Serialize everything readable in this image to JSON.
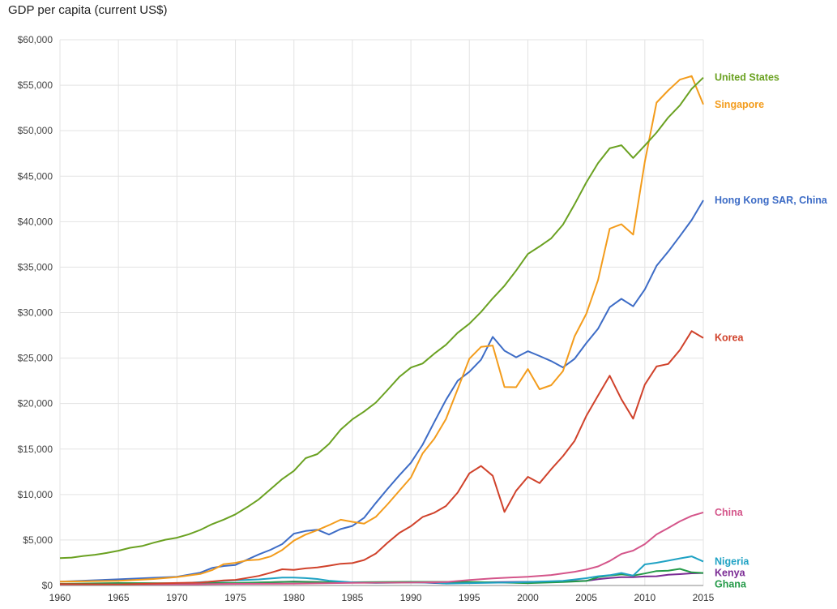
{
  "chart_data": {
    "type": "line",
    "title": "GDP per capita (current US$)",
    "xlabel": "",
    "ylabel": "",
    "xlim": [
      1960,
      2015
    ],
    "ylim": [
      0,
      60000
    ],
    "grid": true,
    "legend": "right (end-of-line labels)",
    "x_ticks": [
      "1960",
      "1965",
      "1970",
      "1975",
      "1980",
      "1985",
      "1990",
      "1995",
      "2000",
      "2005",
      "2010",
      "2015"
    ],
    "y_ticks": [
      "$0",
      "$5,000",
      "$10,000",
      "$15,000",
      "$20,000",
      "$25,000",
      "$30,000",
      "$35,000",
      "$40,000",
      "$45,000",
      "$50,000",
      "$55,000",
      "$60,000"
    ],
    "y_tick_values": [
      0,
      5000,
      10000,
      15000,
      20000,
      25000,
      30000,
      35000,
      40000,
      45000,
      50000,
      55000,
      60000
    ],
    "series": [
      {
        "name": "United States",
        "color": "#6aa121",
        "points": [
          [
            1960,
            3007
          ],
          [
            1961,
            3067
          ],
          [
            1962,
            3244
          ],
          [
            1963,
            3375
          ],
          [
            1964,
            3574
          ],
          [
            1965,
            3828
          ],
          [
            1966,
            4147
          ],
          [
            1967,
            4336
          ],
          [
            1968,
            4696
          ],
          [
            1969,
            5032
          ],
          [
            1970,
            5247
          ],
          [
            1971,
            5623
          ],
          [
            1972,
            6109
          ],
          [
            1973,
            6741
          ],
          [
            1974,
            7242
          ],
          [
            1975,
            7820
          ],
          [
            1976,
            8611
          ],
          [
            1977,
            9471
          ],
          [
            1978,
            10587
          ],
          [
            1979,
            11696
          ],
          [
            1980,
            12598
          ],
          [
            1981,
            13993
          ],
          [
            1982,
            14439
          ],
          [
            1983,
            15561
          ],
          [
            1984,
            17135
          ],
          [
            1985,
            18270
          ],
          [
            1986,
            19115
          ],
          [
            1987,
            20101
          ],
          [
            1988,
            21483
          ],
          [
            1989,
            22922
          ],
          [
            1990,
            23955
          ],
          [
            1991,
            24405
          ],
          [
            1992,
            25493
          ],
          [
            1993,
            26465
          ],
          [
            1994,
            27777
          ],
          [
            1995,
            28782
          ],
          [
            1996,
            30068
          ],
          [
            1997,
            31573
          ],
          [
            1998,
            32949
          ],
          [
            1999,
            34621
          ],
          [
            2000,
            36450
          ],
          [
            2001,
            37274
          ],
          [
            2002,
            38166
          ],
          [
            2003,
            39677
          ],
          [
            2004,
            41922
          ],
          [
            2005,
            44308
          ],
          [
            2006,
            46437
          ],
          [
            2007,
            48062
          ],
          [
            2008,
            48401
          ],
          [
            2009,
            47002
          ],
          [
            2010,
            48375
          ],
          [
            2011,
            49794
          ],
          [
            2012,
            51451
          ],
          [
            2013,
            52788
          ],
          [
            2014,
            54600
          ],
          [
            2015,
            55837
          ]
        ]
      },
      {
        "name": "Singapore",
        "color": "#f39c1c",
        "points": [
          [
            1960,
            428
          ],
          [
            1965,
            516
          ],
          [
            1968,
            709
          ],
          [
            1970,
            925
          ],
          [
            1972,
            1264
          ],
          [
            1973,
            1685
          ],
          [
            1974,
            2342
          ],
          [
            1975,
            2490
          ],
          [
            1976,
            2760
          ],
          [
            1977,
            2846
          ],
          [
            1978,
            3194
          ],
          [
            1979,
            3901
          ],
          [
            1980,
            4928
          ],
          [
            1981,
            5596
          ],
          [
            1982,
            6077
          ],
          [
            1983,
            6633
          ],
          [
            1984,
            7228
          ],
          [
            1985,
            6997
          ],
          [
            1986,
            6800
          ],
          [
            1987,
            7539
          ],
          [
            1988,
            8914
          ],
          [
            1989,
            10394
          ],
          [
            1990,
            11864
          ],
          [
            1991,
            14502
          ],
          [
            1992,
            16136
          ],
          [
            1993,
            18302
          ],
          [
            1994,
            21578
          ],
          [
            1995,
            24937
          ],
          [
            1996,
            26233
          ],
          [
            1997,
            26376
          ],
          [
            1998,
            21829
          ],
          [
            1999,
            21796
          ],
          [
            2000,
            23793
          ],
          [
            2001,
            21577
          ],
          [
            2002,
            22017
          ],
          [
            2003,
            23574
          ],
          [
            2004,
            27405
          ],
          [
            2005,
            29870
          ],
          [
            2006,
            33580
          ],
          [
            2007,
            39224
          ],
          [
            2008,
            39722
          ],
          [
            2009,
            38577
          ],
          [
            2010,
            46570
          ],
          [
            2011,
            53094
          ],
          [
            2012,
            54431
          ],
          [
            2013,
            55618
          ],
          [
            2014,
            56007
          ],
          [
            2015,
            52889
          ]
        ]
      },
      {
        "name": "Hong Kong SAR, China",
        "color": "#3d6cc6",
        "points": [
          [
            1960,
            430
          ],
          [
            1965,
            677
          ],
          [
            1970,
            960
          ],
          [
            1972,
            1408
          ],
          [
            1973,
            1930
          ],
          [
            1974,
            2140
          ],
          [
            1975,
            2253
          ],
          [
            1976,
            2845
          ],
          [
            1977,
            3416
          ],
          [
            1978,
            3922
          ],
          [
            1979,
            4545
          ],
          [
            1980,
            5700
          ],
          [
            1981,
            5991
          ],
          [
            1982,
            6134
          ],
          [
            1983,
            5595
          ],
          [
            1984,
            6208
          ],
          [
            1985,
            6543
          ],
          [
            1986,
            7436
          ],
          [
            1987,
            9071
          ],
          [
            1988,
            10609
          ],
          [
            1989,
            12097
          ],
          [
            1990,
            13486
          ],
          [
            1991,
            15466
          ],
          [
            1992,
            17976
          ],
          [
            1993,
            20396
          ],
          [
            1994,
            22503
          ],
          [
            1995,
            23497
          ],
          [
            1996,
            24818
          ],
          [
            1997,
            27330
          ],
          [
            1998,
            25809
          ],
          [
            1999,
            25092
          ],
          [
            2000,
            25757
          ],
          [
            2001,
            25230
          ],
          [
            2002,
            24666
          ],
          [
            2003,
            23977
          ],
          [
            2004,
            24928
          ],
          [
            2005,
            26650
          ],
          [
            2006,
            28224
          ],
          [
            2007,
            30599
          ],
          [
            2008,
            31516
          ],
          [
            2009,
            30697
          ],
          [
            2010,
            32550
          ],
          [
            2011,
            35142
          ],
          [
            2012,
            36708
          ],
          [
            2013,
            38404
          ],
          [
            2014,
            40170
          ],
          [
            2015,
            42351
          ]
        ]
      },
      {
        "name": "Korea",
        "color": "#d0422b",
        "points": [
          [
            1960,
            156
          ],
          [
            1965,
            108
          ],
          [
            1970,
            279
          ],
          [
            1972,
            324
          ],
          [
            1974,
            563
          ],
          [
            1975,
            615
          ],
          [
            1976,
            830
          ],
          [
            1977,
            1056
          ],
          [
            1978,
            1404
          ],
          [
            1979,
            1783
          ],
          [
            1980,
            1715
          ],
          [
            1981,
            1883
          ],
          [
            1982,
            1992
          ],
          [
            1983,
            2178
          ],
          [
            1984,
            2392
          ],
          [
            1985,
            2457
          ],
          [
            1986,
            2803
          ],
          [
            1987,
            3511
          ],
          [
            1988,
            4686
          ],
          [
            1989,
            5766
          ],
          [
            1990,
            6516
          ],
          [
            1991,
            7523
          ],
          [
            1992,
            8001
          ],
          [
            1993,
            8741
          ],
          [
            1994,
            10206
          ],
          [
            1995,
            12333
          ],
          [
            1996,
            13138
          ],
          [
            1997,
            12059
          ],
          [
            1998,
            8085
          ],
          [
            1999,
            10410
          ],
          [
            2000,
            11948
          ],
          [
            2001,
            11253
          ],
          [
            2002,
            12789
          ],
          [
            2003,
            14219
          ],
          [
            2004,
            15908
          ],
          [
            2005,
            18640
          ],
          [
            2006,
            20888
          ],
          [
            2007,
            23061
          ],
          [
            2008,
            20475
          ],
          [
            2009,
            18339
          ],
          [
            2010,
            22087
          ],
          [
            2011,
            24080
          ],
          [
            2012,
            24359
          ],
          [
            2013,
            25890
          ],
          [
            2014,
            27968
          ],
          [
            2015,
            27222
          ]
        ]
      },
      {
        "name": "China",
        "color": "#d4558a",
        "points": [
          [
            1960,
            90
          ],
          [
            1965,
            98
          ],
          [
            1970,
            112
          ],
          [
            1975,
            178
          ],
          [
            1980,
            195
          ],
          [
            1985,
            294
          ],
          [
            1990,
            318
          ],
          [
            1993,
            377
          ],
          [
            1995,
            610
          ],
          [
            1997,
            782
          ],
          [
            2000,
            959
          ],
          [
            2002,
            1149
          ],
          [
            2004,
            1509
          ],
          [
            2005,
            1753
          ],
          [
            2006,
            2099
          ],
          [
            2007,
            2693
          ],
          [
            2008,
            3468
          ],
          [
            2009,
            3832
          ],
          [
            2010,
            4550
          ],
          [
            2011,
            5618
          ],
          [
            2012,
            6317
          ],
          [
            2013,
            7051
          ],
          [
            2014,
            7651
          ],
          [
            2015,
            8033
          ]
        ]
      },
      {
        "name": "Nigeria",
        "color": "#1fa2c4",
        "points": [
          [
            1960,
            93
          ],
          [
            1965,
            117
          ],
          [
            1970,
            224
          ],
          [
            1975,
            573
          ],
          [
            1977,
            667
          ],
          [
            1979,
            870
          ],
          [
            1980,
            876
          ],
          [
            1981,
            810
          ],
          [
            1982,
            713
          ],
          [
            1983,
            530
          ],
          [
            1985,
            346
          ],
          [
            1987,
            275
          ],
          [
            1990,
            322
          ],
          [
            1992,
            320
          ],
          [
            1993,
            210
          ],
          [
            1995,
            258
          ],
          [
            2000,
            377
          ],
          [
            2003,
            511
          ],
          [
            2005,
            804
          ],
          [
            2006,
            1015
          ],
          [
            2007,
            1131
          ],
          [
            2008,
            1377
          ],
          [
            2009,
            1092
          ],
          [
            2010,
            2315
          ],
          [
            2011,
            2498
          ],
          [
            2012,
            2729
          ],
          [
            2013,
            2980
          ],
          [
            2014,
            3203
          ],
          [
            2015,
            2640
          ]
        ]
      },
      {
        "name": "Ghana",
        "color": "#249a48",
        "points": [
          [
            1960,
            180
          ],
          [
            1965,
            265
          ],
          [
            1970,
            250
          ],
          [
            1975,
            272
          ],
          [
            1980,
            412
          ],
          [
            1983,
            356
          ],
          [
            1985,
            354
          ],
          [
            1990,
            403
          ],
          [
            1995,
            390
          ],
          [
            2000,
            260
          ],
          [
            2003,
            370
          ],
          [
            2005,
            495
          ],
          [
            2006,
            912
          ],
          [
            2007,
            1090
          ],
          [
            2008,
            1225
          ],
          [
            2009,
            1087
          ],
          [
            2010,
            1323
          ],
          [
            2011,
            1586
          ],
          [
            2012,
            1629
          ],
          [
            2013,
            1827
          ],
          [
            2014,
            1442
          ],
          [
            2015,
            1370
          ]
        ]
      },
      {
        "name": "Kenya",
        "color": "#7a2a94",
        "points": [
          [
            1960,
            98
          ],
          [
            1965,
            108
          ],
          [
            1970,
            144
          ],
          [
            1975,
            235
          ],
          [
            1980,
            439
          ],
          [
            1985,
            315
          ],
          [
            1990,
            366
          ],
          [
            1993,
            227
          ],
          [
            1995,
            336
          ],
          [
            2000,
            403
          ],
          [
            2003,
            441
          ],
          [
            2005,
            520
          ],
          [
            2006,
            692
          ],
          [
            2007,
            833
          ],
          [
            2008,
            920
          ],
          [
            2009,
            914
          ],
          [
            2010,
            991
          ],
          [
            2011,
            1012
          ],
          [
            2012,
            1187
          ],
          [
            2013,
            1247
          ],
          [
            2014,
            1335
          ],
          [
            2015,
            1377
          ]
        ]
      }
    ]
  }
}
